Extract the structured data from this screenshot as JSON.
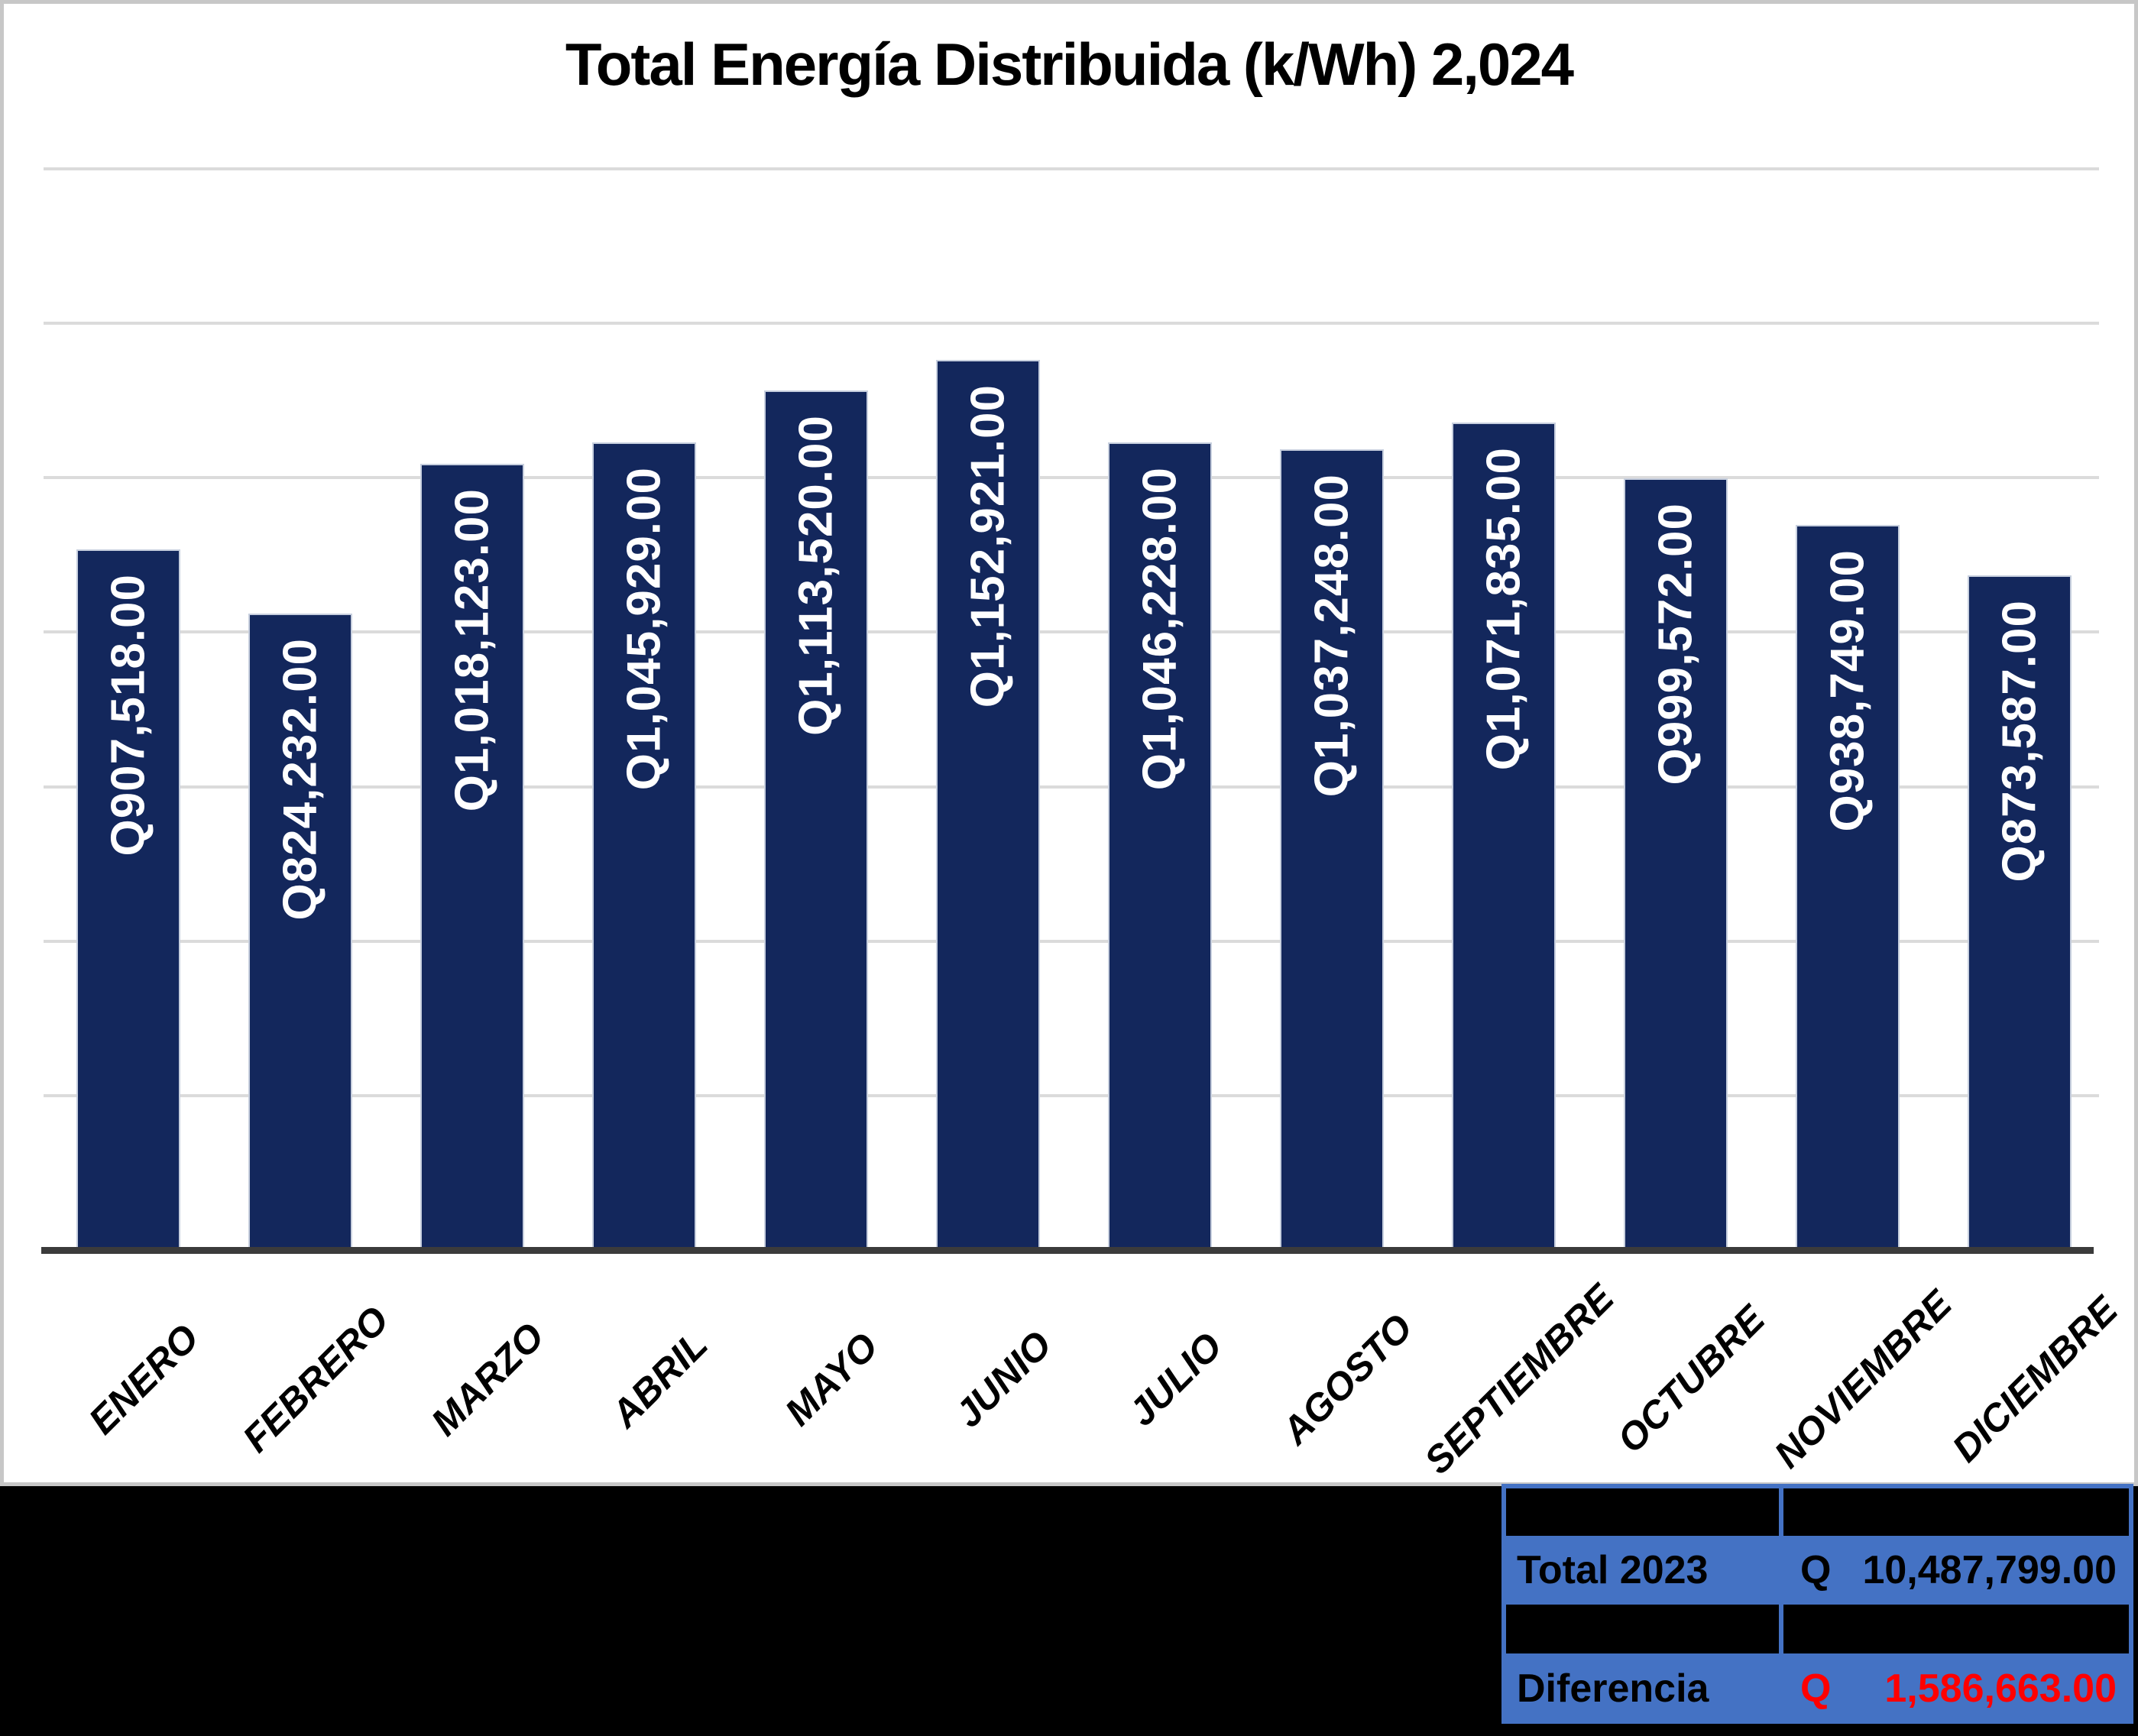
{
  "title": "Total Energía Distribuida (k/Wh) 2,024",
  "chart_data": {
    "type": "bar",
    "title": "Total Energía Distribuida (k/Wh) 2,024",
    "categories": [
      "ENERO",
      "FEBRERO",
      "MARZO",
      "ABRIL",
      "MAYO",
      "JUNIO",
      "JULIO",
      "AGOSTO",
      "SEPTIEMBRE",
      "OCTUBRE",
      "NOVIEMBRE",
      "DICIEMBRE"
    ],
    "values": [
      907518,
      824232,
      1018123,
      1045929,
      1113520,
      1152921,
      1046228,
      1037248,
      1071835,
      999572,
      938749,
      873587
    ],
    "bar_labels": [
      "Q907,518.00",
      "Q824,232.00",
      "Q1,018,123.00",
      "Q1,045,929.00",
      "Q1,113,520.00",
      "Q1,152,921.00",
      "Q1,046,228.00",
      "Q1,037,248.00",
      "Q1,071,835.00",
      "Q999,572.00",
      "Q938,749.00",
      "Q873,587.00"
    ],
    "xlabel": "",
    "ylabel": "",
    "ylim": [
      0,
      1400000
    ],
    "gridline_interval": 200000,
    "grid": true,
    "legend": false,
    "bar_color": "#13275c",
    "bar_edge_color": "#c7cfde",
    "gridline_color": "#dbdbdb",
    "axis_line_color": "#3b3b3b",
    "label_text_color": "#ffffff"
  },
  "summary_table": {
    "accent_color": "#4472c4",
    "negative_color": "#ff0000",
    "rows": [
      {
        "type": "spacer",
        "label": "",
        "currency": "",
        "value": "",
        "value_color": ""
      },
      {
        "type": "data",
        "label": "Total 2023",
        "currency": "Q",
        "value": "10,487,799.00",
        "value_color": "black"
      },
      {
        "type": "spacer",
        "label": "",
        "currency": "",
        "value": "",
        "value_color": ""
      },
      {
        "type": "data",
        "label": "Diferencia",
        "currency": "Q",
        "value": "1,586,663.00",
        "value_color": "red"
      }
    ]
  }
}
